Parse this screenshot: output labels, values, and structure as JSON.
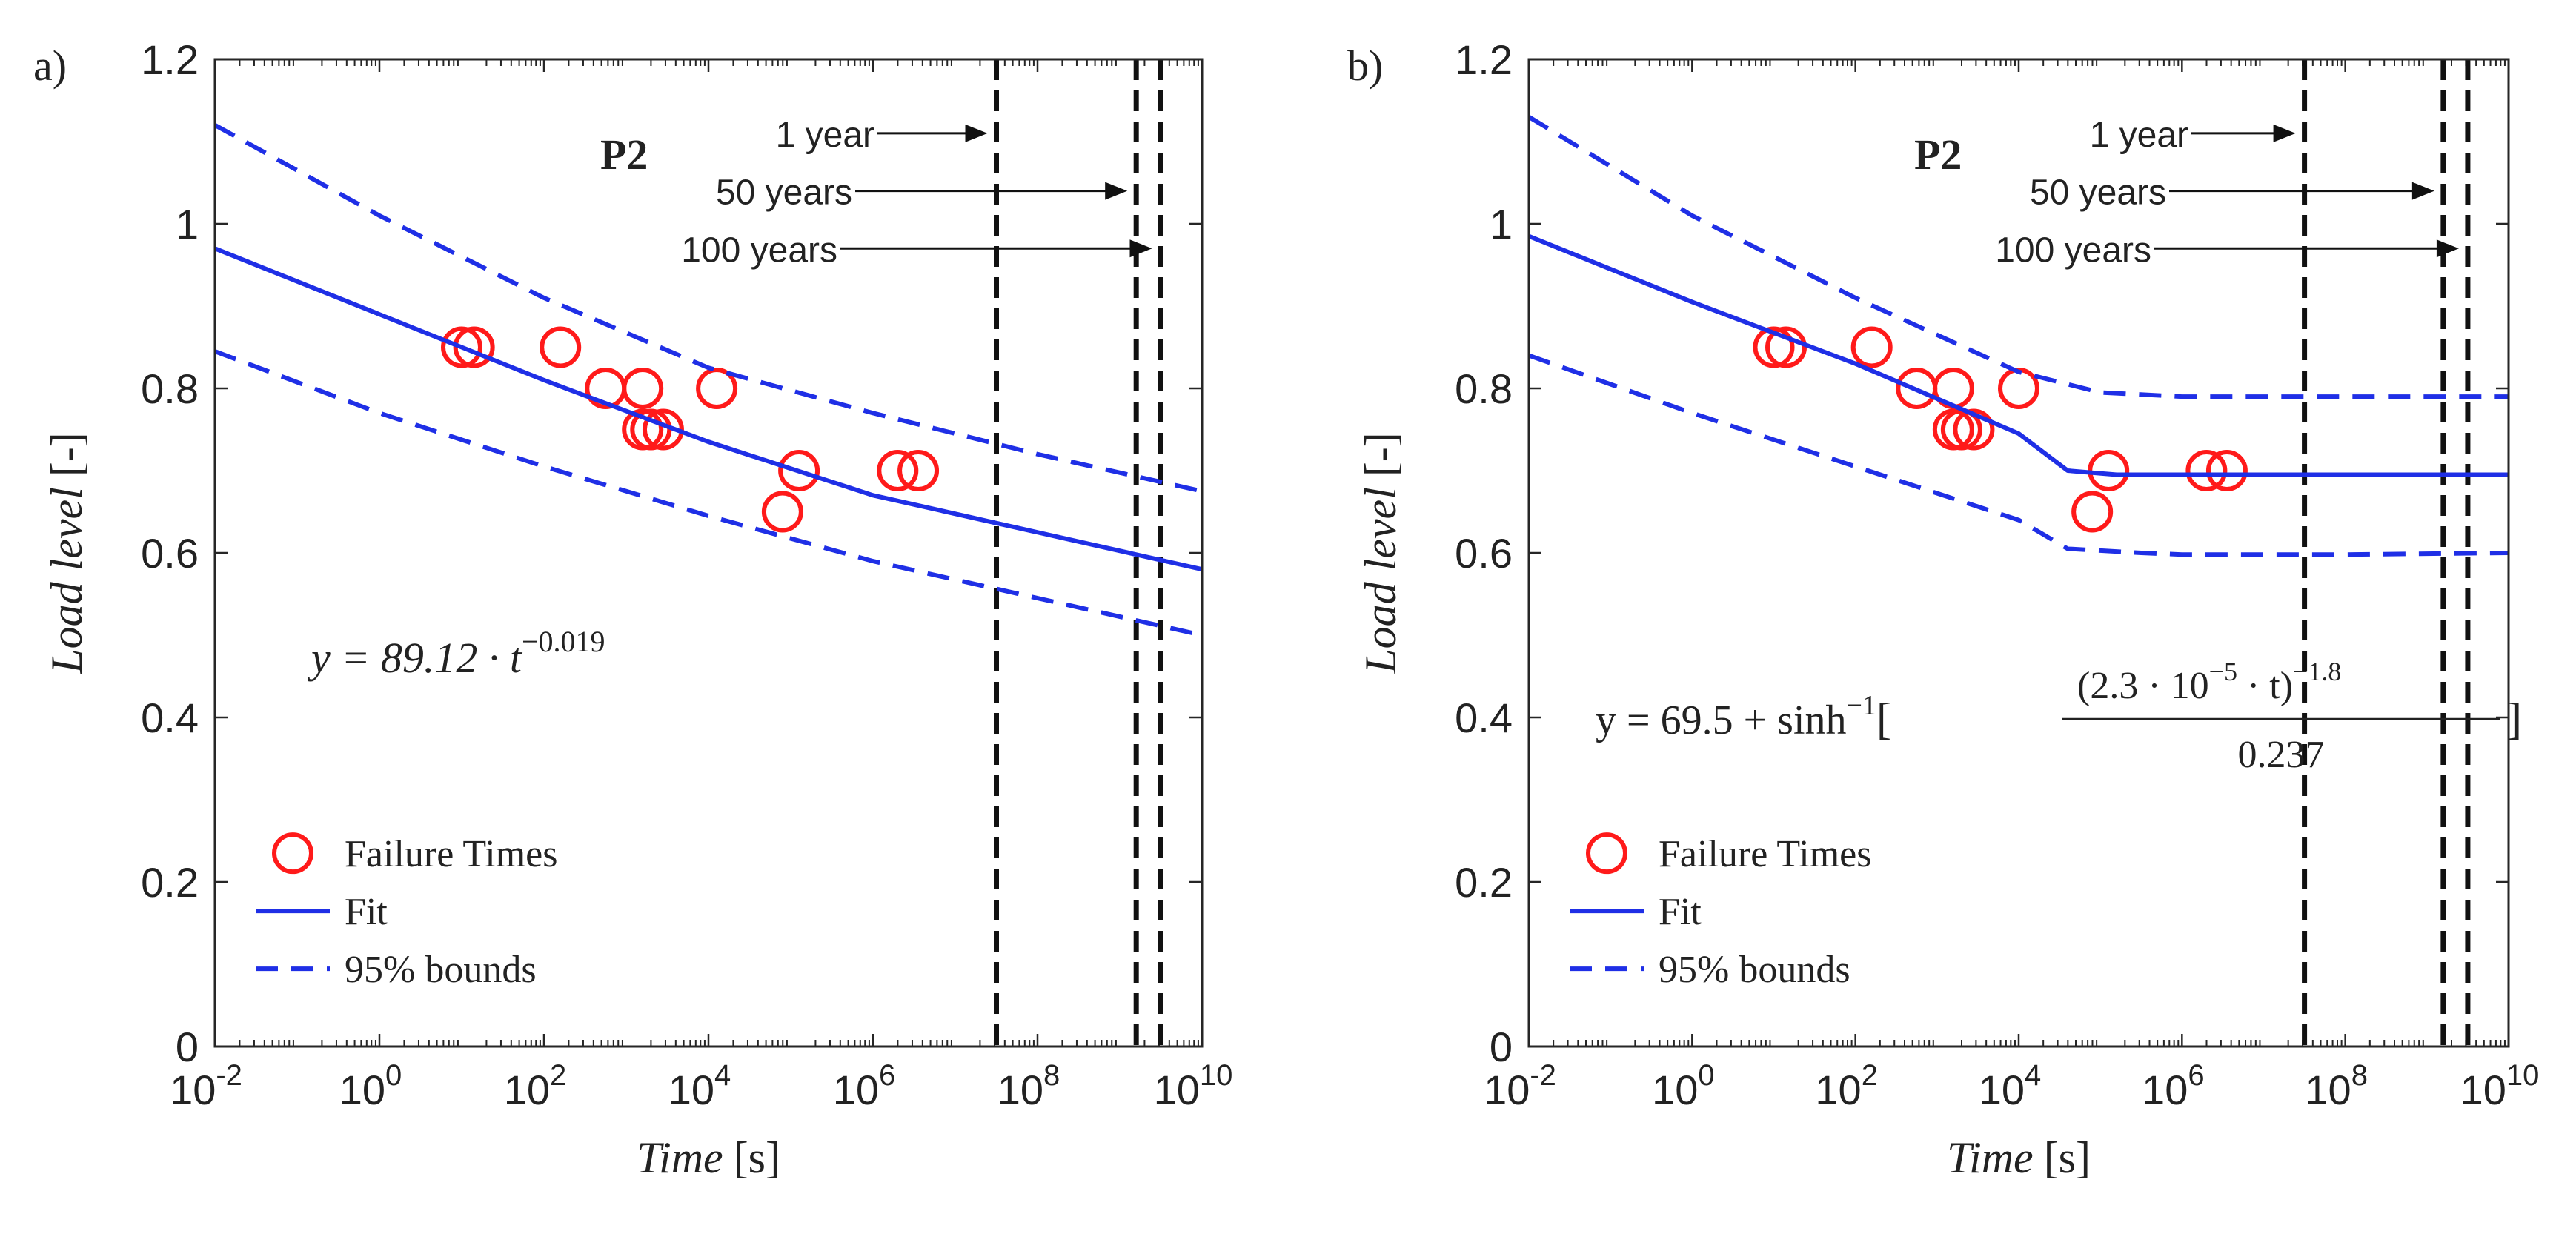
{
  "chart_data": [
    {
      "type": "scatter",
      "panel_letter": "a)",
      "title": "P2",
      "xlabel_var": "Time",
      "xlabel_unit": "[s]",
      "ylabel_var": "Load level",
      "ylabel_unit": "[-]",
      "xscale": "log",
      "xlim": [
        -2,
        10
      ],
      "ylim": [
        0,
        1.2
      ],
      "x_ticks": [
        {
          "base": "10",
          "exp": "-2",
          "value": -2
        },
        {
          "base": "10",
          "exp": "0",
          "value": 0
        },
        {
          "base": "10",
          "exp": "2",
          "value": 2
        },
        {
          "base": "10",
          "exp": "4",
          "value": 4
        },
        {
          "base": "10",
          "exp": "6",
          "value": 6
        },
        {
          "base": "10",
          "exp": "8",
          "value": 8
        },
        {
          "base": "10",
          "exp": "10",
          "value": 10
        }
      ],
      "y_ticks": [
        "0",
        "0.2",
        "0.4",
        "0.6",
        "0.8",
        "1",
        "1.2"
      ],
      "series": [
        {
          "name": "Failure Times",
          "kind": "markers",
          "color": "#ff1a1a",
          "x_log10": [
            1.0,
            1.15,
            2.2,
            2.75,
            3.2,
            3.3,
            3.2,
            3.45,
            4.1,
            4.9,
            5.1,
            6.3,
            6.55
          ],
          "y": [
            0.85,
            0.85,
            0.85,
            0.8,
            0.8,
            0.75,
            0.75,
            0.75,
            0.8,
            0.65,
            0.7,
            0.7,
            0.7
          ]
        },
        {
          "name": "Fit",
          "kind": "line",
          "color": "#1f2fe6",
          "x_log10": [
            -2,
            0,
            2,
            4,
            6,
            8,
            10
          ],
          "y": [
            0.97,
            0.89,
            0.81,
            0.735,
            0.67,
            0.625,
            0.58
          ]
        },
        {
          "name": "95% bounds",
          "kind": "dashed",
          "color": "#1f2fe6",
          "x_log10": [
            -2,
            0,
            2,
            4,
            6,
            8,
            10
          ],
          "y": [
            1.12,
            1.01,
            0.91,
            0.825,
            0.77,
            0.72,
            0.675
          ]
        },
        {
          "name": "95% bounds lower",
          "kind": "dashed",
          "color": "#1f2fe6",
          "x_log10": [
            -2,
            0,
            2,
            4,
            6,
            8,
            10
          ],
          "y": [
            0.845,
            0.77,
            0.705,
            0.645,
            0.59,
            0.545,
            0.5
          ]
        }
      ],
      "vlines": [
        {
          "label": "1 year",
          "x_log10": 7.5,
          "label_y": 1.11
        },
        {
          "label": "50 years",
          "x_log10": 9.2,
          "label_y": 1.04
        },
        {
          "label": "100 years",
          "x_log10": 9.5,
          "label_y": 0.97
        }
      ],
      "equation": {
        "text": "y = 89.12 · t",
        "exp": "−0.019"
      },
      "legend": {
        "placement": "bottom-left",
        "entries": [
          "Failure Times",
          "Fit",
          "95% bounds"
        ]
      }
    },
    {
      "type": "scatter",
      "panel_letter": "b)",
      "title": "P2",
      "xlabel_var": "Time",
      "xlabel_unit": "[s]",
      "ylabel_var": "Load level",
      "ylabel_unit": "[-]",
      "xscale": "log",
      "xlim": [
        -2,
        10
      ],
      "ylim": [
        0,
        1.2
      ],
      "x_ticks": [
        {
          "base": "10",
          "exp": "-2",
          "value": -2
        },
        {
          "base": "10",
          "exp": "0",
          "value": 0
        },
        {
          "base": "10",
          "exp": "2",
          "value": 2
        },
        {
          "base": "10",
          "exp": "4",
          "value": 4
        },
        {
          "base": "10",
          "exp": "6",
          "value": 6
        },
        {
          "base": "10",
          "exp": "8",
          "value": 8
        },
        {
          "base": "10",
          "exp": "10",
          "value": 10
        }
      ],
      "y_ticks": [
        "0",
        "0.2",
        "0.4",
        "0.6",
        "0.8",
        "1",
        "1.2"
      ],
      "series": [
        {
          "name": "Failure Times",
          "kind": "markers",
          "color": "#ff1a1a",
          "x_log10": [
            1.0,
            1.15,
            2.2,
            2.75,
            3.2,
            3.3,
            3.2,
            3.45,
            4.0,
            4.9,
            5.1,
            6.3,
            6.55
          ],
          "y": [
            0.85,
            0.85,
            0.85,
            0.8,
            0.8,
            0.75,
            0.75,
            0.75,
            0.8,
            0.65,
            0.7,
            0.7,
            0.7
          ]
        },
        {
          "name": "Fit",
          "kind": "line",
          "color": "#1f2fe6",
          "x_log10": [
            -2,
            0,
            2,
            4,
            4.6,
            5.2,
            6,
            8,
            10
          ],
          "y": [
            0.985,
            0.905,
            0.83,
            0.745,
            0.7,
            0.695,
            0.695,
            0.695,
            0.695
          ]
        },
        {
          "name": "95% bounds",
          "kind": "dashed",
          "color": "#1f2fe6",
          "x_log10": [
            -2,
            0,
            2,
            4,
            5,
            6,
            8,
            10
          ],
          "y": [
            1.13,
            1.01,
            0.91,
            0.82,
            0.795,
            0.79,
            0.79,
            0.79
          ]
        },
        {
          "name": "95% bounds lower",
          "kind": "dashed",
          "color": "#1f2fe6",
          "x_log10": [
            -2,
            0,
            2,
            4,
            4.6,
            5.5,
            6,
            8,
            10
          ],
          "y": [
            0.84,
            0.77,
            0.705,
            0.64,
            0.605,
            0.6,
            0.598,
            0.598,
            0.6
          ]
        }
      ],
      "vlines": [
        {
          "label": "1 year",
          "x_log10": 7.5,
          "label_y": 1.11
        },
        {
          "label": "50 years",
          "x_log10": 9.2,
          "label_y": 1.04
        },
        {
          "label": "100 years",
          "x_log10": 9.5,
          "label_y": 0.97
        }
      ],
      "equation": {
        "lhs": "y = 69.5 + sinh",
        "inv": "−1",
        "numerator": "(2.3 · 10",
        "num_exp": "−5",
        "numerator_tail": " · t)",
        "tail_exp": "−1.8",
        "denominator": "0.237",
        "open_bracket": "[",
        "close_bracket": "]"
      },
      "legend": {
        "placement": "bottom-left",
        "entries": [
          "Failure Times",
          "Fit",
          "95% bounds"
        ]
      }
    }
  ]
}
